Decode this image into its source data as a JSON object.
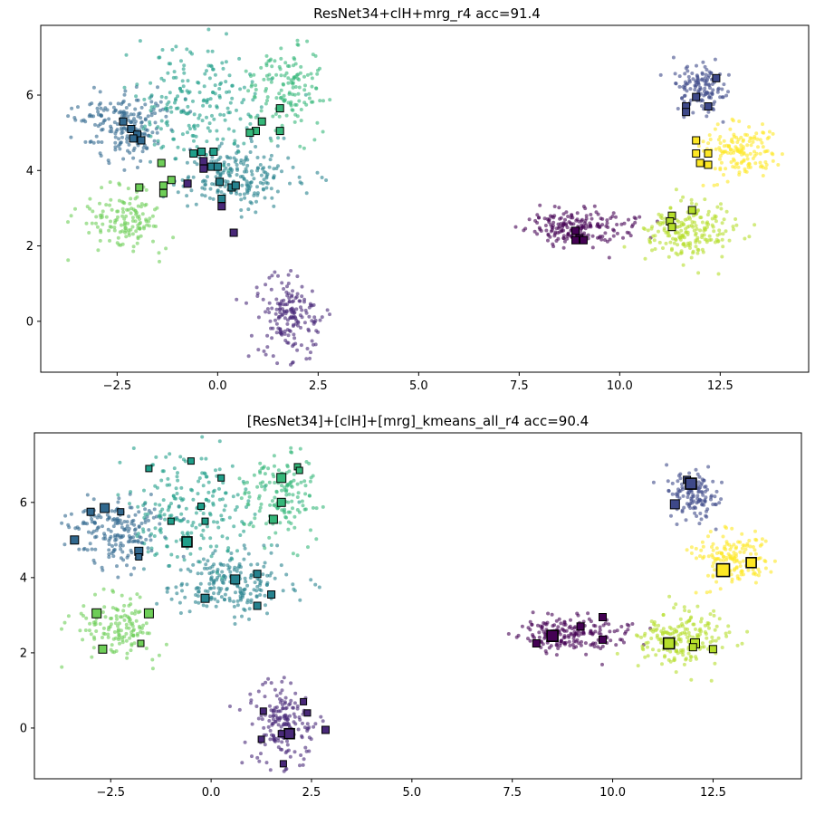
{
  "chart_data": [
    {
      "type": "scatter",
      "title": "ResNet34+clH+mrg_r4   acc=91.4",
      "xlabel": "",
      "ylabel": "",
      "xlim": [
        -4.4,
        14.7
      ],
      "ylim": [
        -1.35,
        7.85
      ],
      "xticks": [
        -2.5,
        0.0,
        2.5,
        5.0,
        7.5,
        10.0,
        12.5
      ],
      "xtick_labels": [
        "−2.5",
        "0.0",
        "2.5",
        "5.0",
        "7.5",
        "10.0",
        "12.5"
      ],
      "yticks": [
        0,
        2,
        4,
        6
      ],
      "ytick_labels": [
        "0",
        "2",
        "4",
        "6"
      ],
      "grid": false,
      "colormap": [
        "#440154",
        "#482878",
        "#3e4989",
        "#31688e",
        "#26828e",
        "#1f9e89",
        "#35b779",
        "#6ece58",
        "#b5de2b",
        "#fde725"
      ],
      "clusters": [
        {
          "color": "#482878",
          "cx": 1.8,
          "cy": 0.1,
          "sx": 0.38,
          "sy": 0.55,
          "n": 180
        },
        {
          "color": "#3e4989",
          "cx": 12.0,
          "cy": 6.2,
          "sx": 0.32,
          "sy": 0.3,
          "n": 130
        },
        {
          "color": "#fde725",
          "cx": 13.0,
          "cy": 4.5,
          "sx": 0.45,
          "sy": 0.35,
          "n": 150
        },
        {
          "color": "#440154",
          "cx": 9.0,
          "cy": 2.5,
          "sx": 0.65,
          "sy": 0.22,
          "n": 190
        },
        {
          "color": "#b5de2b",
          "cx": 11.7,
          "cy": 2.4,
          "sx": 0.55,
          "sy": 0.35,
          "n": 200
        },
        {
          "color": "#31688e",
          "cx": -2.3,
          "cy": 5.2,
          "sx": 0.6,
          "sy": 0.45,
          "n": 190
        },
        {
          "color": "#26828e",
          "cx": 0.5,
          "cy": 3.8,
          "sx": 0.75,
          "sy": 0.4,
          "n": 210
        },
        {
          "color": "#1f9e89",
          "cx": -0.5,
          "cy": 5.8,
          "sx": 0.85,
          "sy": 0.75,
          "n": 200
        },
        {
          "color": "#35b779",
          "cx": 1.7,
          "cy": 6.2,
          "sx": 0.5,
          "sy": 0.6,
          "n": 140
        },
        {
          "color": "#6ece58",
          "cx": -2.3,
          "cy": 2.7,
          "sx": 0.45,
          "sy": 0.45,
          "n": 140
        }
      ],
      "markers": [
        {
          "x": 12.4,
          "y": 6.45,
          "color": "#3e4989",
          "size": 8
        },
        {
          "x": 11.9,
          "y": 5.95,
          "color": "#3e4989",
          "size": 8
        },
        {
          "x": 11.65,
          "y": 5.7,
          "color": "#3e4989",
          "size": 8
        },
        {
          "x": 11.65,
          "y": 5.55,
          "color": "#3e4989",
          "size": 8
        },
        {
          "x": 12.2,
          "y": 5.7,
          "color": "#3e4989",
          "size": 8
        },
        {
          "x": 11.9,
          "y": 4.8,
          "color": "#fde725",
          "size": 8
        },
        {
          "x": 11.9,
          "y": 4.45,
          "color": "#fde725",
          "size": 8
        },
        {
          "x": 12.2,
          "y": 4.45,
          "color": "#fde725",
          "size": 8
        },
        {
          "x": 12.0,
          "y": 4.2,
          "color": "#fde725",
          "size": 8
        },
        {
          "x": 12.2,
          "y": 4.15,
          "color": "#fde725",
          "size": 8
        },
        {
          "x": 8.9,
          "y": 2.4,
          "color": "#440154",
          "size": 8
        },
        {
          "x": 9.0,
          "y": 2.2,
          "color": "#440154",
          "size": 8
        },
        {
          "x": 8.9,
          "y": 2.15,
          "color": "#440154",
          "size": 8
        },
        {
          "x": 9.1,
          "y": 2.15,
          "color": "#440154",
          "size": 8
        },
        {
          "x": 11.3,
          "y": 2.8,
          "color": "#b5de2b",
          "size": 8
        },
        {
          "x": 11.25,
          "y": 2.65,
          "color": "#b5de2b",
          "size": 8
        },
        {
          "x": 11.3,
          "y": 2.5,
          "color": "#b5de2b",
          "size": 8
        },
        {
          "x": 11.8,
          "y": 2.95,
          "color": "#b5de2b",
          "size": 8
        },
        {
          "x": -2.35,
          "y": 5.3,
          "color": "#31688e",
          "size": 8
        },
        {
          "x": -2.15,
          "y": 5.1,
          "color": "#31688e",
          "size": 8
        },
        {
          "x": -2.0,
          "y": 4.95,
          "color": "#31688e",
          "size": 8
        },
        {
          "x": -2.1,
          "y": 4.85,
          "color": "#31688e",
          "size": 8
        },
        {
          "x": -1.9,
          "y": 4.8,
          "color": "#31688e",
          "size": 8
        },
        {
          "x": 0.95,
          "y": 5.05,
          "color": "#35b779",
          "size": 8
        },
        {
          "x": 0.8,
          "y": 5.0,
          "color": "#35b779",
          "size": 8
        },
        {
          "x": 1.1,
          "y": 5.3,
          "color": "#35b779",
          "size": 8
        },
        {
          "x": 1.55,
          "y": 5.65,
          "color": "#35b779",
          "size": 8
        },
        {
          "x": 1.55,
          "y": 5.05,
          "color": "#35b779",
          "size": 8
        },
        {
          "x": -0.6,
          "y": 4.45,
          "color": "#1f9e89",
          "size": 8
        },
        {
          "x": -0.4,
          "y": 4.5,
          "color": "#1f9e89",
          "size": 8
        },
        {
          "x": -0.1,
          "y": 4.5,
          "color": "#1f9e89",
          "size": 8
        },
        {
          "x": -0.35,
          "y": 4.25,
          "color": "#482878",
          "size": 8
        },
        {
          "x": -0.35,
          "y": 4.05,
          "color": "#482878",
          "size": 8
        },
        {
          "x": -0.15,
          "y": 4.1,
          "color": "#26828e",
          "size": 8
        },
        {
          "x": 0.0,
          "y": 4.1,
          "color": "#26828e",
          "size": 8
        },
        {
          "x": 0.05,
          "y": 3.7,
          "color": "#26828e",
          "size": 8
        },
        {
          "x": 0.35,
          "y": 3.55,
          "color": "#26828e",
          "size": 8
        },
        {
          "x": 0.45,
          "y": 3.6,
          "color": "#26828e",
          "size": 8
        },
        {
          "x": 0.1,
          "y": 3.25,
          "color": "#26828e",
          "size": 8
        },
        {
          "x": -0.75,
          "y": 3.65,
          "color": "#482878",
          "size": 8
        },
        {
          "x": 0.1,
          "y": 3.05,
          "color": "#482878",
          "size": 8
        },
        {
          "x": 0.4,
          "y": 2.35,
          "color": "#482878",
          "size": 8
        },
        {
          "x": -1.4,
          "y": 4.2,
          "color": "#6ece58",
          "size": 8
        },
        {
          "x": -1.15,
          "y": 3.75,
          "color": "#6ece58",
          "size": 8
        },
        {
          "x": -1.35,
          "y": 3.6,
          "color": "#6ece58",
          "size": 8
        },
        {
          "x": -1.35,
          "y": 3.4,
          "color": "#6ece58",
          "size": 8
        },
        {
          "x": -1.95,
          "y": 3.55,
          "color": "#6ece58",
          "size": 8
        }
      ]
    },
    {
      "type": "scatter",
      "title": "[ResNet34]+[clH]+[mrg]_kmeans_all_r4   acc=90.4",
      "xlabel": "",
      "ylabel": "",
      "xlim": [
        -4.4,
        14.7
      ],
      "ylim": [
        -1.35,
        7.85
      ],
      "xticks": [
        -2.5,
        0.0,
        2.5,
        5.0,
        7.5,
        10.0,
        12.5
      ],
      "xtick_labels": [
        "−2.5",
        "0.0",
        "2.5",
        "5.0",
        "7.5",
        "10.0",
        "12.5"
      ],
      "yticks": [
        0,
        2,
        4,
        6
      ],
      "ytick_labels": [
        "0",
        "2",
        "4",
        "6"
      ],
      "grid": false,
      "colormap": [
        "#440154",
        "#482878",
        "#3e4989",
        "#31688e",
        "#26828e",
        "#1f9e89",
        "#35b779",
        "#6ece58",
        "#b5de2b",
        "#fde725"
      ],
      "clusters": [
        {
          "color": "#482878",
          "cx": 1.8,
          "cy": 0.1,
          "sx": 0.38,
          "sy": 0.55,
          "n": 180
        },
        {
          "color": "#3e4989",
          "cx": 12.0,
          "cy": 6.2,
          "sx": 0.32,
          "sy": 0.3,
          "n": 130
        },
        {
          "color": "#fde725",
          "cx": 13.0,
          "cy": 4.5,
          "sx": 0.45,
          "sy": 0.35,
          "n": 150
        },
        {
          "color": "#440154",
          "cx": 9.0,
          "cy": 2.5,
          "sx": 0.65,
          "sy": 0.22,
          "n": 190
        },
        {
          "color": "#b5de2b",
          "cx": 11.7,
          "cy": 2.4,
          "sx": 0.55,
          "sy": 0.35,
          "n": 200
        },
        {
          "color": "#31688e",
          "cx": -2.3,
          "cy": 5.2,
          "sx": 0.6,
          "sy": 0.45,
          "n": 190
        },
        {
          "color": "#26828e",
          "cx": 0.5,
          "cy": 3.8,
          "sx": 0.75,
          "sy": 0.4,
          "n": 210
        },
        {
          "color": "#1f9e89",
          "cx": -0.5,
          "cy": 5.8,
          "sx": 0.85,
          "sy": 0.75,
          "n": 200
        },
        {
          "color": "#35b779",
          "cx": 1.7,
          "cy": 6.2,
          "sx": 0.5,
          "sy": 0.6,
          "n": 140
        },
        {
          "color": "#6ece58",
          "cx": -2.3,
          "cy": 2.7,
          "sx": 0.45,
          "sy": 0.45,
          "n": 140
        }
      ],
      "markers": [
        {
          "x": 11.85,
          "y": 6.6,
          "color": "#3e4989",
          "size": 8
        },
        {
          "x": 11.95,
          "y": 6.5,
          "color": "#3e4989",
          "size": 12
        },
        {
          "x": 11.55,
          "y": 5.95,
          "color": "#3e4989",
          "size": 10
        },
        {
          "x": 12.75,
          "y": 4.2,
          "color": "#fde725",
          "size": 14
        },
        {
          "x": 13.45,
          "y": 4.4,
          "color": "#fde725",
          "size": 11
        },
        {
          "x": 8.1,
          "y": 2.25,
          "color": "#440154",
          "size": 8
        },
        {
          "x": 8.5,
          "y": 2.45,
          "color": "#440154",
          "size": 12
        },
        {
          "x": 9.2,
          "y": 2.7,
          "color": "#440154",
          "size": 8
        },
        {
          "x": 9.75,
          "y": 2.95,
          "color": "#440154",
          "size": 8
        },
        {
          "x": 9.75,
          "y": 2.35,
          "color": "#440154",
          "size": 8
        },
        {
          "x": 11.4,
          "y": 2.25,
          "color": "#b5de2b",
          "size": 12
        },
        {
          "x": 12.05,
          "y": 2.25,
          "color": "#b5de2b",
          "size": 10
        },
        {
          "x": 12.0,
          "y": 2.15,
          "color": "#b5de2b",
          "size": 8
        },
        {
          "x": 12.5,
          "y": 2.1,
          "color": "#b5de2b",
          "size": 8
        },
        {
          "x": -3.4,
          "y": 5.0,
          "color": "#31688e",
          "size": 9
        },
        {
          "x": -3.0,
          "y": 5.75,
          "color": "#31688e",
          "size": 8
        },
        {
          "x": -2.65,
          "y": 5.85,
          "color": "#31688e",
          "size": 10
        },
        {
          "x": -2.25,
          "y": 5.75,
          "color": "#31688e",
          "size": 7
        },
        {
          "x": -1.8,
          "y": 4.7,
          "color": "#31688e",
          "size": 9
        },
        {
          "x": -1.8,
          "y": 4.55,
          "color": "#31688e",
          "size": 7
        },
        {
          "x": -1.55,
          "y": 6.9,
          "color": "#1f9e89",
          "size": 7
        },
        {
          "x": -1.0,
          "y": 5.5,
          "color": "#1f9e89",
          "size": 7
        },
        {
          "x": -0.5,
          "y": 7.1,
          "color": "#1f9e89",
          "size": 7
        },
        {
          "x": -0.25,
          "y": 5.9,
          "color": "#1f9e89",
          "size": 7
        },
        {
          "x": -0.15,
          "y": 5.5,
          "color": "#1f9e89",
          "size": 7
        },
        {
          "x": 0.25,
          "y": 6.65,
          "color": "#1f9e89",
          "size": 7
        },
        {
          "x": -0.6,
          "y": 4.95,
          "color": "#1f9e89",
          "size": 11
        },
        {
          "x": 1.75,
          "y": 6.65,
          "color": "#35b779",
          "size": 10
        },
        {
          "x": 1.75,
          "y": 6.0,
          "color": "#35b779",
          "size": 9
        },
        {
          "x": 1.55,
          "y": 5.55,
          "color": "#35b779",
          "size": 9
        },
        {
          "x": 2.15,
          "y": 6.95,
          "color": "#35b779",
          "size": 7
        },
        {
          "x": 2.2,
          "y": 6.85,
          "color": "#35b779",
          "size": 7
        },
        {
          "x": 0.6,
          "y": 3.95,
          "color": "#26828e",
          "size": 10
        },
        {
          "x": 1.15,
          "y": 4.1,
          "color": "#26828e",
          "size": 8
        },
        {
          "x": 1.5,
          "y": 3.55,
          "color": "#26828e",
          "size": 8
        },
        {
          "x": -0.15,
          "y": 3.45,
          "color": "#26828e",
          "size": 9
        },
        {
          "x": 1.15,
          "y": 3.25,
          "color": "#26828e",
          "size": 8
        },
        {
          "x": -2.85,
          "y": 3.05,
          "color": "#6ece58",
          "size": 10
        },
        {
          "x": -1.55,
          "y": 3.05,
          "color": "#6ece58",
          "size": 10
        },
        {
          "x": -2.7,
          "y": 2.1,
          "color": "#6ece58",
          "size": 9
        },
        {
          "x": -1.75,
          "y": 2.25,
          "color": "#6ece58",
          "size": 7
        },
        {
          "x": 1.3,
          "y": 0.45,
          "color": "#482878",
          "size": 7
        },
        {
          "x": 2.3,
          "y": 0.7,
          "color": "#482878",
          "size": 7
        },
        {
          "x": 2.4,
          "y": 0.4,
          "color": "#482878",
          "size": 7
        },
        {
          "x": 2.85,
          "y": -0.05,
          "color": "#482878",
          "size": 8
        },
        {
          "x": 1.95,
          "y": -0.15,
          "color": "#482878",
          "size": 11
        },
        {
          "x": 1.75,
          "y": -0.15,
          "color": "#482878",
          "size": 7
        },
        {
          "x": 1.25,
          "y": -0.3,
          "color": "#482878",
          "size": 7
        },
        {
          "x": 1.8,
          "y": -0.95,
          "color": "#482878",
          "size": 7
        }
      ]
    }
  ]
}
